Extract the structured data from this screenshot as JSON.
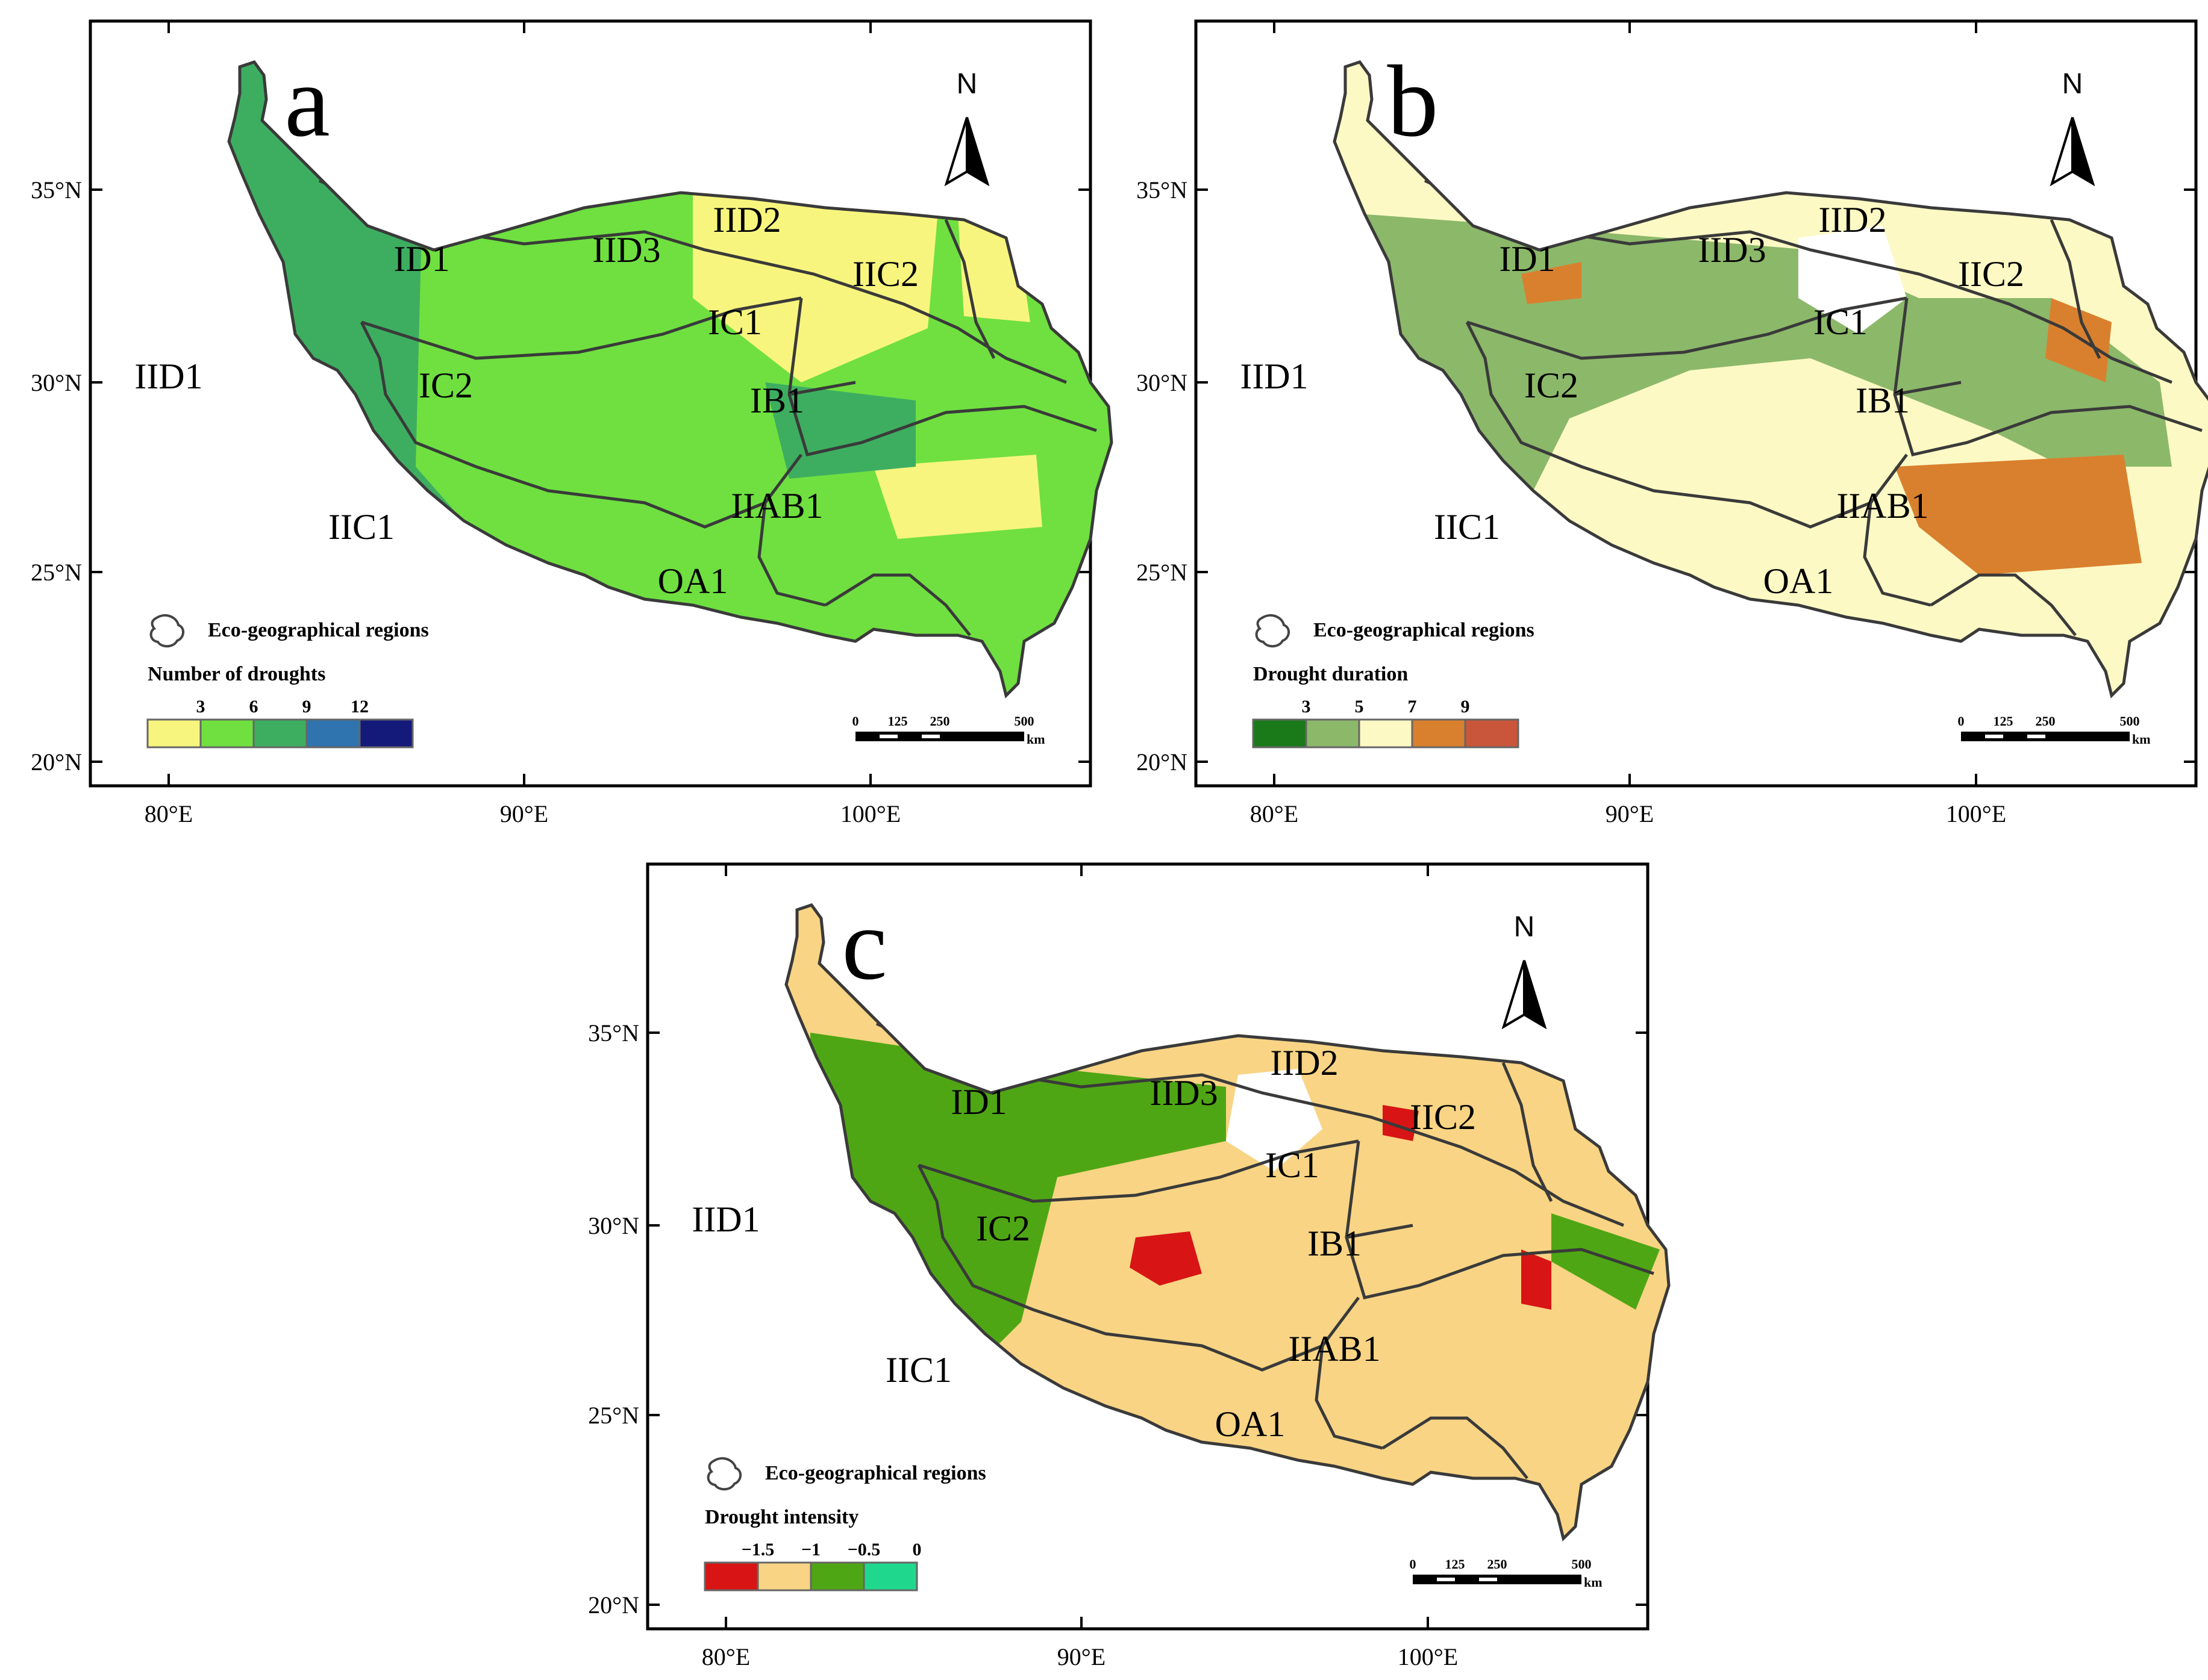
{
  "axes": {
    "lat_ticks": [
      "35°N",
      "30°N",
      "25°N",
      "20°N"
    ],
    "lon_ticks": [
      "80°E",
      "90°E",
      "100°E"
    ]
  },
  "north_label": "N",
  "legend_region_label": "Eco-geographical regions",
  "scale_bar": {
    "labels": [
      "0",
      "125",
      "250",
      "500"
    ],
    "unit": "km"
  },
  "regions": [
    "ID1",
    "IID3",
    "IID2",
    "IIC2",
    "IC1",
    "IID1",
    "IC2",
    "IB1",
    "IIAB1",
    "IIC1",
    "OA1"
  ],
  "panels": [
    {
      "letter": "a",
      "legend_title": "Number of droughts",
      "legend_ticks": [
        "3",
        "6",
        "9",
        "12"
      ],
      "legend_colors": [
        "#f8f57e",
        "#6fe040",
        "#3dae60",
        "#2f74ae",
        "#141a7a"
      ],
      "map_colors": {
        "base": "#6fe040",
        "west": "#3dae60",
        "deep": "#2f74ae",
        "light": "#f8f57e"
      }
    },
    {
      "letter": "b",
      "legend_title": "Drought duration",
      "legend_ticks": [
        "3",
        "5",
        "7",
        "9"
      ],
      "legend_colors": [
        "#1a7a1a",
        "#8cb86a",
        "#fdf9c4",
        "#d9802e",
        "#c9563a"
      ],
      "map_colors": {
        "base": "#fdf9c4",
        "west": "#8cb86a",
        "deep": "#1a7a1a",
        "light": "#d9802e"
      }
    },
    {
      "letter": "c",
      "legend_title": "Drought intensity",
      "legend_ticks": [
        "−1.5",
        "−1",
        "−0.5",
        "0"
      ],
      "legend_colors": [
        "#d81414",
        "#f8d484",
        "#4fa614",
        "#1fd88e"
      ],
      "map_colors": {
        "base": "#f8d484",
        "west": "#4fa614",
        "deep": "#d81414",
        "light": "#4fa614"
      }
    }
  ]
}
